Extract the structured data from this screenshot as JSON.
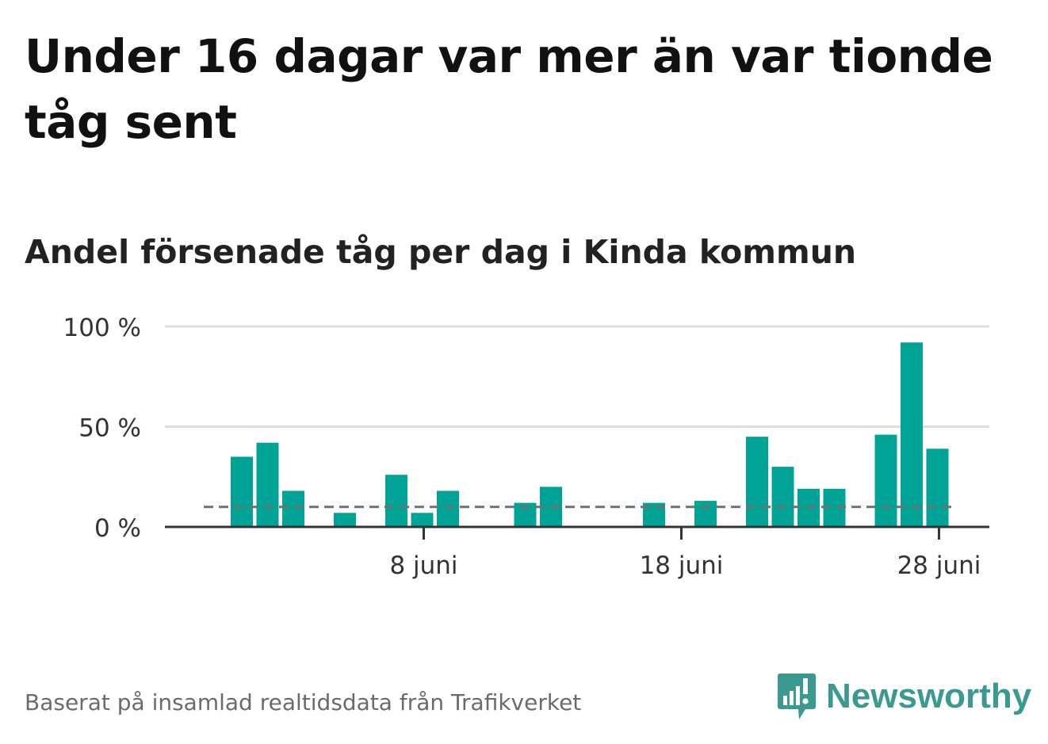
{
  "title": "Under 16 dagar var mer än var tionde tåg sent",
  "subtitle": "Andel försenade tåg per dag i Kinda kommun",
  "footer": "Baserat på insamlad realtidsdata från Trafikverket",
  "logo": {
    "text": "Newsworthy",
    "icon": "newsworthy-bar-chart-icon",
    "color": "#3a9a8f"
  },
  "colors": {
    "bar": "#00a497",
    "grid": "#dddddd",
    "axis": "#333333",
    "reference_line": "#707070",
    "title": "#111111",
    "footer": "#6b6b6b"
  },
  "chart_data": {
    "type": "bar",
    "title": "Andel försenade tåg per dag i Kinda kommun",
    "x_unit": "date",
    "x": [
      "2023-06-01",
      "2023-06-02",
      "2023-06-03",
      "2023-06-04",
      "2023-06-05",
      "2023-06-06",
      "2023-06-07",
      "2023-06-08",
      "2023-06-09",
      "2023-06-10",
      "2023-06-11",
      "2023-06-12",
      "2023-06-13",
      "2023-06-14",
      "2023-06-15",
      "2023-06-16",
      "2023-06-17",
      "2023-06-18",
      "2023-06-19",
      "2023-06-20",
      "2023-06-21",
      "2023-06-22",
      "2023-06-23",
      "2023-06-24",
      "2023-06-25",
      "2023-06-26",
      "2023-06-27",
      "2023-06-28",
      "2023-06-29"
    ],
    "values": [
      0.35,
      0.42,
      0.18,
      0,
      0.07,
      0,
      0.26,
      0.07,
      0.18,
      0,
      0,
      0.12,
      0.2,
      0,
      0,
      0,
      0.12,
      0,
      0.13,
      0,
      0.45,
      0.3,
      0.19,
      0.19,
      0,
      0.46,
      0.92,
      0.39,
      null
    ],
    "ylim": [
      0,
      1
    ],
    "yticks": [
      0,
      0.5,
      1
    ],
    "ytick_labels": [
      "0 %",
      "50 %",
      "100 %"
    ],
    "xtick_labels": [
      {
        "x": "2023-06-08",
        "label": "8 juni"
      },
      {
        "x": "2023-06-18",
        "label": "18 juni"
      },
      {
        "x": "2023-06-28",
        "label": "28 juni"
      }
    ],
    "reference_line": 0.1,
    "grid": true
  }
}
